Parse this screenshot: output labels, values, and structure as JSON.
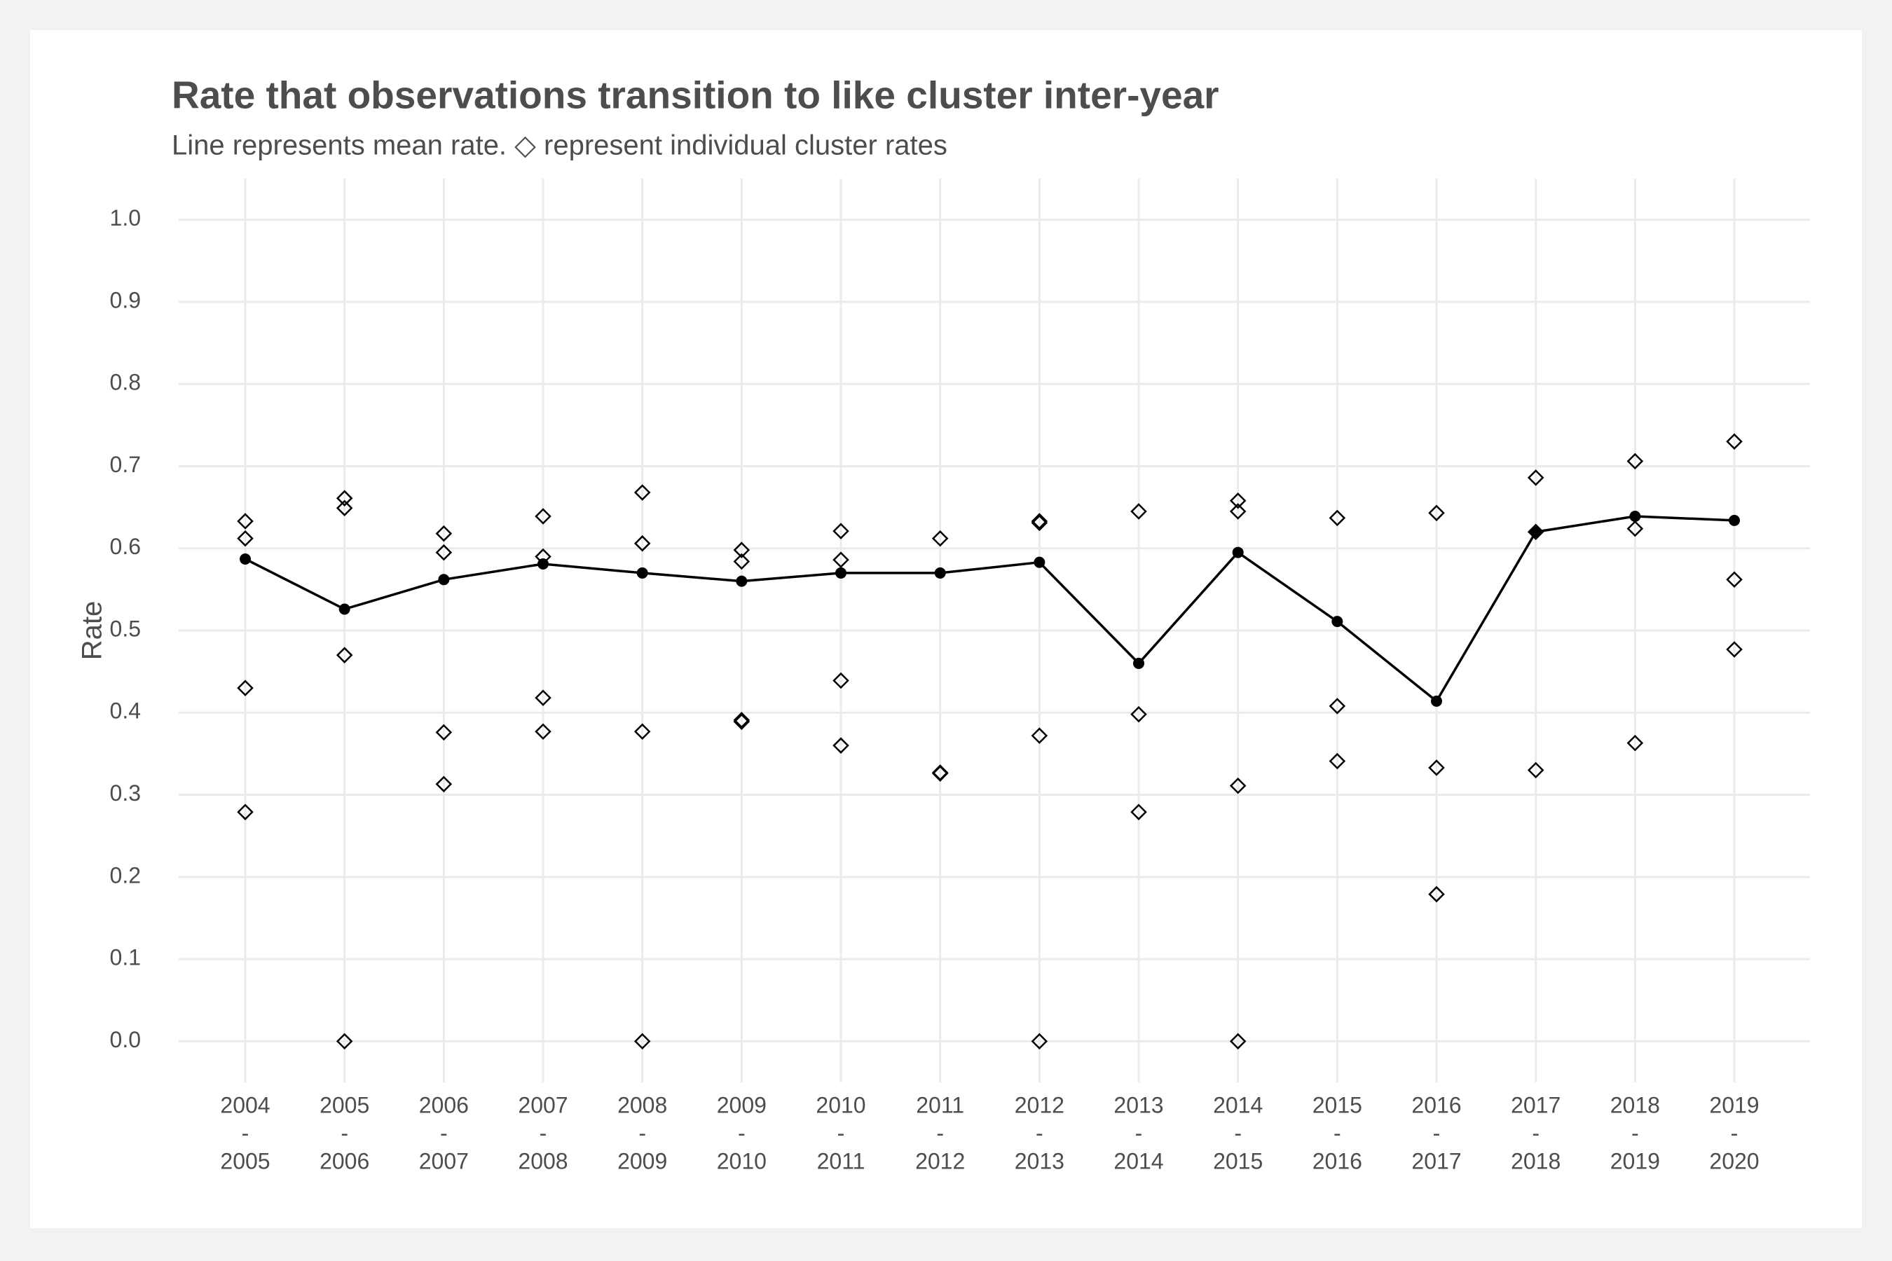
{
  "chart_data": {
    "type": "line",
    "title": "Rate that observations transition to like cluster inter-year",
    "subtitle": "Line represents mean rate. ◇ represent individual cluster rates",
    "y_label": "Rate",
    "categories": [
      [
        "2004",
        "-",
        "2005"
      ],
      [
        "2005",
        "-",
        "2006"
      ],
      [
        "2006",
        "-",
        "2007"
      ],
      [
        "2007",
        "-",
        "2008"
      ],
      [
        "2008",
        "-",
        "2009"
      ],
      [
        "2009",
        "-",
        "2010"
      ],
      [
        "2010",
        "-",
        "2011"
      ],
      [
        "2011",
        "-",
        "2012"
      ],
      [
        "2012",
        "-",
        "2013"
      ],
      [
        "2013",
        "-",
        "2014"
      ],
      [
        "2014",
        "-",
        "2015"
      ],
      [
        "2015",
        "-",
        "2016"
      ],
      [
        "2016",
        "-",
        "2017"
      ],
      [
        "2017",
        "-",
        "2018"
      ],
      [
        "2018",
        "-",
        "2019"
      ],
      [
        "2019",
        "-",
        "2020"
      ]
    ],
    "values": [
      0.587,
      0.526,
      0.562,
      0.581,
      0.57,
      0.56,
      0.57,
      0.57,
      0.583,
      0.46,
      0.595,
      0.511,
      0.414,
      0.62,
      0.639,
      0.634
    ],
    "color": "#000000",
    "cluster_rates": [
      [
        0.633,
        0.612,
        0.43,
        0.279
      ],
      [
        0.661,
        0.649,
        0.47,
        0
      ],
      [
        0.618,
        0.595,
        0.376,
        0.313
      ],
      [
        0.639,
        0.59,
        0.418,
        0.377
      ],
      [
        0.668,
        0.606,
        0.377,
        0
      ],
      [
        0.598,
        0.584,
        0.391,
        0.389
      ],
      [
        0.621,
        0.586,
        0.439,
        0.36
      ],
      [
        0.612,
        0.327,
        0.326
      ],
      [
        0.633,
        0.631,
        0.372,
        0
      ],
      [
        0.645,
        0.398,
        0.279
      ],
      [
        0.658,
        0.645,
        0.311,
        0
      ],
      [
        0.637,
        0.408,
        0.341
      ],
      [
        0.643,
        0.333,
        0.179
      ],
      [
        0.686,
        0.62,
        0.33
      ],
      [
        0.706,
        0.624,
        0.363
      ],
      [
        0.73,
        0.562,
        0.477
      ]
    ],
    "ylim": [
      -0.05,
      1.05
    ],
    "yticks": [
      {
        "value": 0,
        "label": "0.0"
      },
      0.1,
      0.2,
      0.3,
      0.4,
      0.5,
      0.6,
      0.7,
      0.8,
      0.9,
      {
        "value": 1,
        "label": "1.0"
      }
    ],
    "grid": true
  }
}
